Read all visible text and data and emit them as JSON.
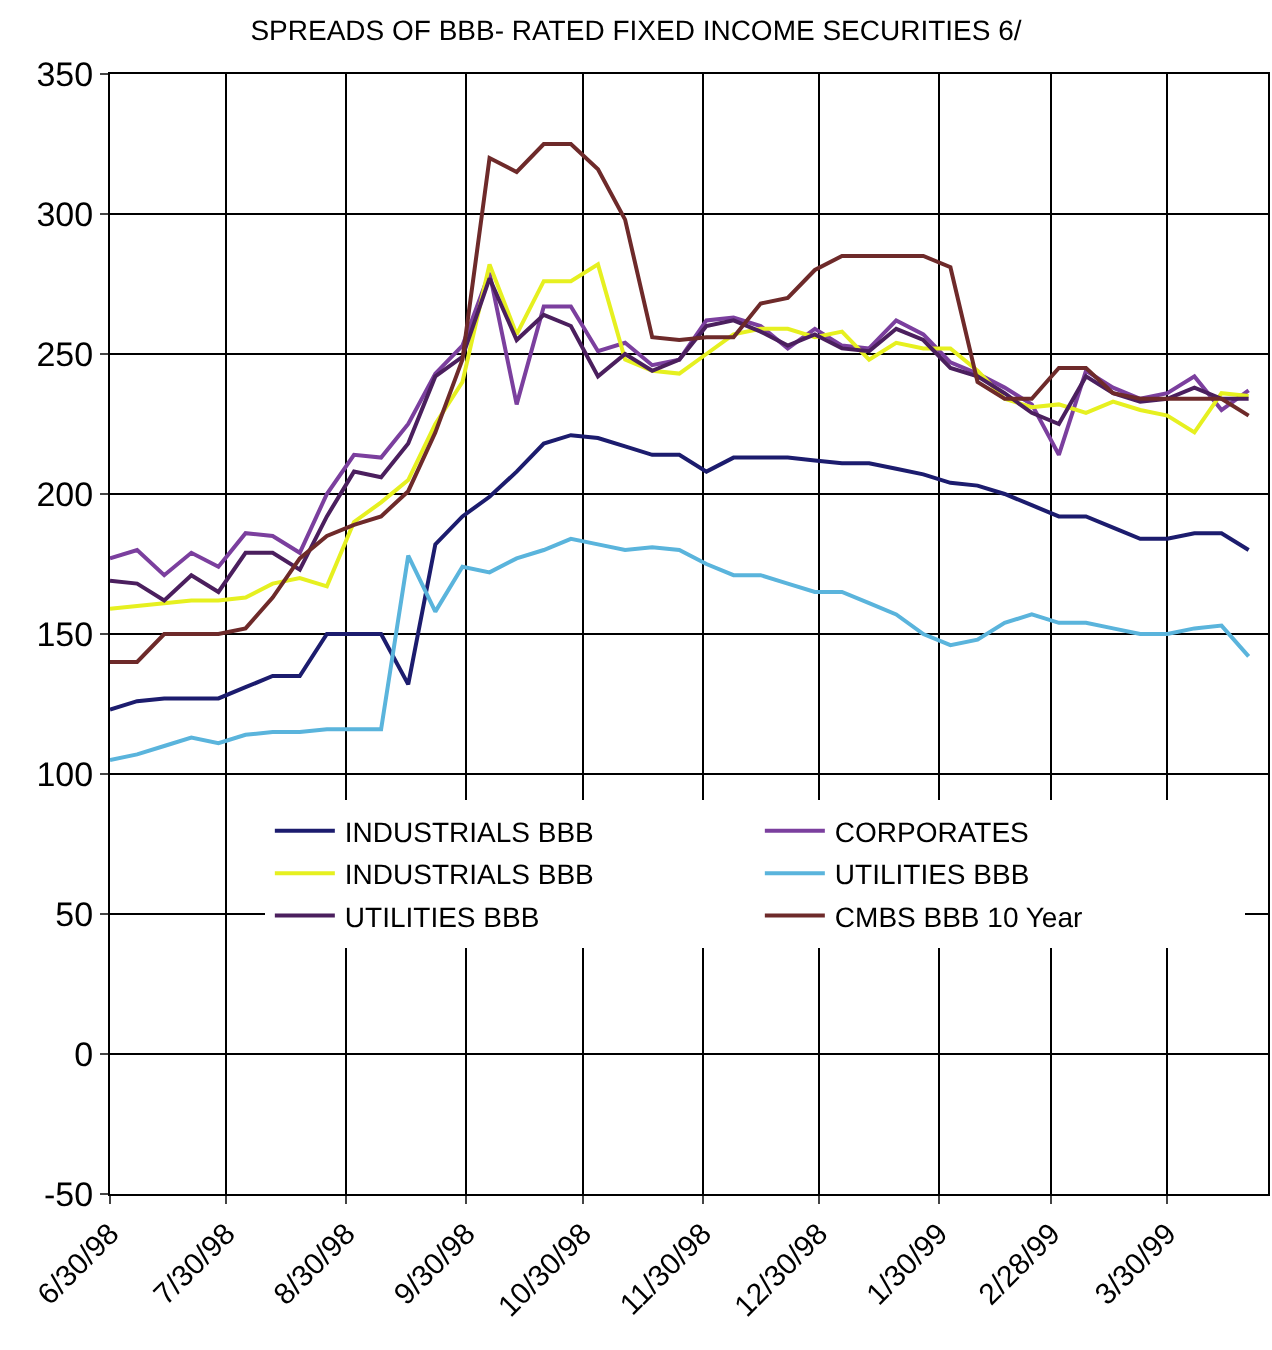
{
  "chart_data": {
    "type": "line",
    "title": "SPREADS OF BBB- RATED FIXED INCOME SECURITIES 6/",
    "x": [
      "1998-06-30",
      "1998-07-07",
      "1998-07-14",
      "1998-07-21",
      "1998-07-28",
      "1998-08-04",
      "1998-08-11",
      "1998-08-18",
      "1998-08-25",
      "1998-09-01",
      "1998-09-08",
      "1998-09-15",
      "1998-09-22",
      "1998-09-29",
      "1998-10-06",
      "1998-10-13",
      "1998-10-20",
      "1998-10-27",
      "1998-11-03",
      "1998-11-10",
      "1998-11-17",
      "1998-11-24",
      "1998-12-01",
      "1998-12-08",
      "1998-12-15",
      "1998-12-22",
      "1998-12-29",
      "1999-01-05",
      "1999-01-12",
      "1999-01-19",
      "1999-01-26",
      "1999-02-02",
      "1999-02-09",
      "1999-02-16",
      "1999-02-23",
      "1999-03-02",
      "1999-03-09",
      "1999-03-16",
      "1999-03-23",
      "1999-03-30",
      "1999-04-06",
      "1999-04-13",
      "1999-04-20"
    ],
    "series": [
      {
        "name": "INDUSTRIALS BBB",
        "color": "#1c1c6e",
        "values": [
          123,
          126,
          127,
          127,
          127,
          131,
          135,
          135,
          150,
          150,
          150,
          132,
          182,
          192,
          199,
          208,
          218,
          221,
          220,
          217,
          214,
          214,
          208,
          213,
          213,
          213,
          212,
          211,
          211,
          209,
          207,
          204,
          203,
          200,
          196,
          192,
          192,
          188,
          184,
          184,
          186,
          186,
          180
        ]
      },
      {
        "name": "CORPORATES",
        "color": "#7b3f9e",
        "values": [
          177,
          180,
          171,
          179,
          174,
          186,
          185,
          179,
          200,
          214,
          213,
          225,
          243,
          253,
          279,
          232,
          267,
          267,
          251,
          254,
          246,
          248,
          262,
          263,
          260,
          252,
          259,
          253,
          252,
          262,
          257,
          247,
          243,
          238,
          232,
          214,
          244,
          238,
          234,
          236,
          242,
          230,
          237
        ]
      },
      {
        "name": "INDUSTRIALS BBB",
        "color": "#e6f020",
        "values": [
          159,
          160,
          161,
          162,
          162,
          163,
          168,
          170,
          167,
          190,
          197,
          205,
          225,
          240,
          282,
          257,
          276,
          276,
          282,
          248,
          244,
          243,
          250,
          257,
          259,
          259,
          256,
          258,
          248,
          254,
          252,
          252,
          244,
          234,
          231,
          232,
          229,
          233,
          230,
          228,
          222,
          236,
          235
        ]
      },
      {
        "name": "UTILITIES BBB",
        "color": "#5ab4dc",
        "values": [
          105,
          107,
          110,
          113,
          111,
          114,
          115,
          115,
          116,
          116,
          116,
          178,
          158,
          174,
          172,
          177,
          180,
          184,
          182,
          180,
          181,
          180,
          175,
          171,
          171,
          168,
          165,
          165,
          161,
          157,
          150,
          146,
          148,
          154,
          157,
          154,
          154,
          152,
          150,
          150,
          152,
          153,
          142
        ]
      },
      {
        "name": "UTILITIES BBB",
        "color": "#4b1f5e",
        "values": [
          169,
          168,
          162,
          171,
          165,
          179,
          179,
          173,
          192,
          208,
          206,
          218,
          242,
          249,
          277,
          255,
          264,
          260,
          242,
          250,
          244,
          248,
          260,
          262,
          258,
          253,
          257,
          252,
          251,
          259,
          255,
          245,
          242,
          236,
          229,
          225,
          242,
          236,
          233,
          234,
          238,
          234,
          234
        ]
      },
      {
        "name": "CMBS BBB 10 Year",
        "color": "#6e2a2a",
        "values": [
          140,
          140,
          150,
          150,
          150,
          152,
          163,
          177,
          185,
          189,
          192,
          201,
          222,
          248,
          320,
          315,
          325,
          325,
          316,
          298,
          256,
          255,
          256,
          256,
          268,
          270,
          280,
          285,
          285,
          285,
          285,
          281,
          240,
          234,
          234,
          245,
          245,
          236,
          234,
          234,
          234,
          234,
          228
        ]
      }
    ],
    "xlim": [
      "1998-06-30",
      "1999-04-25"
    ],
    "xticks": [
      {
        "value": "1998-06-30",
        "label": "6/30/98"
      },
      {
        "value": "1998-07-30",
        "label": "7/30/98"
      },
      {
        "value": "1998-08-30",
        "label": "8/30/98"
      },
      {
        "value": "1998-09-30",
        "label": "9/30/98"
      },
      {
        "value": "1998-10-30",
        "label": "10/30/98"
      },
      {
        "value": "1998-11-30",
        "label": "11/30/98"
      },
      {
        "value": "1998-12-30",
        "label": "12/30/98"
      },
      {
        "value": "1999-01-30",
        "label": "1/30/99"
      },
      {
        "value": "1999-02-28",
        "label": "2/28/99"
      },
      {
        "value": "1999-03-30",
        "label": "3/30/99"
      }
    ],
    "ylim": [
      -50,
      350
    ],
    "yticks": [
      -50,
      0,
      50,
      100,
      150,
      200,
      250,
      300,
      350
    ],
    "grid": true,
    "legend": "bottom right",
    "marker": "none",
    "line_style": "solid"
  }
}
